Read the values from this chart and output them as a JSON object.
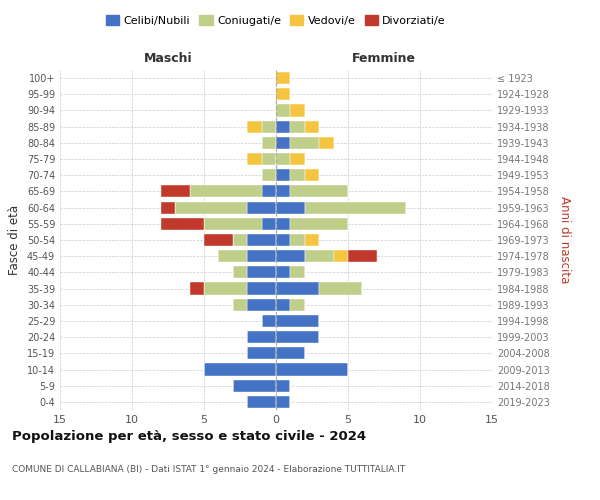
{
  "age_groups": [
    "0-4",
    "5-9",
    "10-14",
    "15-19",
    "20-24",
    "25-29",
    "30-34",
    "35-39",
    "40-44",
    "45-49",
    "50-54",
    "55-59",
    "60-64",
    "65-69",
    "70-74",
    "75-79",
    "80-84",
    "85-89",
    "90-94",
    "95-99",
    "100+"
  ],
  "birth_years": [
    "2019-2023",
    "2014-2018",
    "2009-2013",
    "2004-2008",
    "1999-2003",
    "1994-1998",
    "1989-1993",
    "1984-1988",
    "1979-1983",
    "1974-1978",
    "1969-1973",
    "1964-1968",
    "1959-1963",
    "1954-1958",
    "1949-1953",
    "1944-1948",
    "1939-1943",
    "1934-1938",
    "1929-1933",
    "1924-1928",
    "≤ 1923"
  ],
  "colors": {
    "celibi": "#4472C4",
    "coniugati": "#BFCF8A",
    "vedovi": "#F5C542",
    "divorziati": "#C0392B"
  },
  "males": {
    "celibi": [
      2,
      3,
      5,
      2,
      2,
      1,
      2,
      2,
      2,
      2,
      2,
      1,
      2,
      1,
      0,
      0,
      0,
      0,
      0,
      0,
      0
    ],
    "coniugati": [
      0,
      0,
      0,
      0,
      0,
      0,
      1,
      3,
      1,
      2,
      1,
      4,
      5,
      5,
      1,
      1,
      1,
      1,
      0,
      0,
      0
    ],
    "vedovi": [
      0,
      0,
      0,
      0,
      0,
      0,
      0,
      0,
      0,
      0,
      0,
      0,
      0,
      0,
      0,
      1,
      0,
      1,
      0,
      0,
      0
    ],
    "divorziati": [
      0,
      0,
      0,
      0,
      0,
      0,
      0,
      1,
      0,
      0,
      2,
      3,
      1,
      2,
      0,
      0,
      0,
      0,
      0,
      0,
      0
    ]
  },
  "females": {
    "celibi": [
      1,
      1,
      5,
      2,
      3,
      3,
      1,
      3,
      1,
      2,
      1,
      1,
      2,
      1,
      1,
      0,
      1,
      1,
      0,
      0,
      0
    ],
    "coniugati": [
      0,
      0,
      0,
      0,
      0,
      0,
      1,
      3,
      1,
      2,
      1,
      4,
      7,
      4,
      1,
      1,
      2,
      1,
      1,
      0,
      0
    ],
    "vedovi": [
      0,
      0,
      0,
      0,
      0,
      0,
      0,
      0,
      0,
      1,
      1,
      0,
      0,
      0,
      1,
      1,
      1,
      1,
      1,
      1,
      1
    ],
    "divorziati": [
      0,
      0,
      0,
      0,
      0,
      0,
      0,
      0,
      0,
      2,
      0,
      0,
      0,
      0,
      0,
      0,
      0,
      0,
      0,
      0,
      0
    ]
  },
  "xlim": 15,
  "title": "Popolazione per età, sesso e stato civile - 2024",
  "subtitle": "COMUNE DI CALLABIANA (BI) - Dati ISTAT 1° gennaio 2024 - Elaborazione TUTTITALIA.IT",
  "ylabel_left": "Fasce di età",
  "ylabel_right": "Anni di nascita",
  "xlabel_left": "Maschi",
  "xlabel_right": "Femmine",
  "legend_labels": [
    "Celibi/Nubili",
    "Coniugati/e",
    "Vedovi/e",
    "Divorziati/e"
  ],
  "bg_color": "#FFFFFF",
  "grid_color": "#CCCCCC"
}
